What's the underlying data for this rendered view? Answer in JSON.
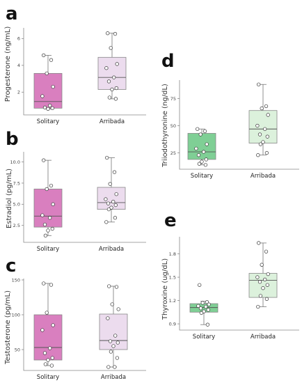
{
  "chart_data": [
    {
      "panel": "a",
      "type": "box",
      "ylabel": "Progesterone (ng/mL)",
      "categories": [
        "Solitary",
        "Arribada"
      ],
      "ylim": [
        0.3,
        6.8
      ],
      "yticks": [
        2,
        4,
        6
      ],
      "ytick_labels": [
        "2",
        "4",
        "6"
      ],
      "colors": [
        "#d97fbf",
        "#ecdcee"
      ],
      "boxes": [
        {
          "category": "Solitary",
          "whisker_low": 0.75,
          "q1": 0.8,
          "median": 1.3,
          "q3": 3.4,
          "whisker_high": 4.75,
          "points": [
            4.75,
            4.4,
            3.4,
            2.4,
            1.7,
            1.0,
            0.85,
            0.8,
            0.75
          ]
        },
        {
          "category": "Arribada",
          "whisker_low": 1.5,
          "q1": 2.2,
          "median": 3.1,
          "q3": 4.6,
          "whisker_high": 6.4,
          "points": [
            6.4,
            6.35,
            5.3,
            4.1,
            3.8,
            3.1,
            2.8,
            2.3,
            2.2,
            1.6,
            1.5
          ]
        }
      ]
    },
    {
      "panel": "b",
      "type": "box",
      "ylabel": "Estradiol (pg/mL)",
      "categories": [
        "Solitary",
        "Arribada"
      ],
      "ylim": [
        0.5,
        11.2
      ],
      "yticks": [
        2.5,
        5.0,
        7.5,
        10.0
      ],
      "ytick_labels": [
        "2.5",
        "5.0",
        "7.5",
        "10.0"
      ],
      "colors": [
        "#d97fbf",
        "#ecdcee"
      ],
      "boxes": [
        {
          "category": "Solitary",
          "whisker_low": 1.3,
          "q1": 2.3,
          "median": 3.6,
          "q3": 6.8,
          "whisker_high": 10.2,
          "points": [
            10.2,
            7.2,
            6.8,
            5.0,
            3.7,
            3.4,
            2.6,
            2.1,
            1.9,
            1.3
          ]
        },
        {
          "category": "Arribada",
          "whisker_low": 2.9,
          "q1": 4.4,
          "median": 5.2,
          "q3": 7.0,
          "whisker_high": 10.5,
          "points": [
            10.5,
            8.8,
            7.4,
            6.2,
            5.6,
            5.3,
            5.1,
            4.9,
            4.6,
            4.4,
            3.4,
            2.9
          ]
        }
      ]
    },
    {
      "panel": "c",
      "type": "box",
      "ylabel": "Testosterone (pg/mL)",
      "categories": [
        "Solitary",
        "Arribada"
      ],
      "ylim": [
        20,
        152
      ],
      "yticks": [
        50,
        100,
        150
      ],
      "ytick_labels": [
        "50",
        "100",
        "150"
      ],
      "colors": [
        "#d97fbf",
        "#ecdcee"
      ],
      "boxes": [
        {
          "category": "Solitary",
          "whisker_low": 27,
          "q1": 35,
          "median": 53,
          "q3": 100,
          "whisker_high": 145,
          "points": [
            145,
            143,
            103,
            85,
            78,
            52,
            45,
            38,
            35,
            29,
            27
          ]
        },
        {
          "category": "Arribada",
          "whisker_low": 25,
          "q1": 50,
          "median": 63,
          "q3": 101,
          "whisker_high": 141,
          "points": [
            141,
            140,
            115,
            108,
            95,
            70,
            62,
            60,
            55,
            47,
            38,
            25,
            25
          ]
        }
      ]
    },
    {
      "panel": "d",
      "type": "box",
      "ylabel": "Triiodothyronine (ng/dL)",
      "categories": [
        "Solitary",
        "Arribada"
      ],
      "ylim": [
        10,
        92
      ],
      "yticks": [
        25,
        50,
        75
      ],
      "ytick_labels": [
        "25",
        "50",
        "75"
      ],
      "colors": [
        "#7fcf95",
        "#dcf1dc"
      ],
      "boxes": [
        {
          "category": "Solitary",
          "whisker_low": 14,
          "q1": 19,
          "median": 26,
          "q3": 43,
          "whisker_high": 47,
          "points": [
            47,
            45,
            42,
            33,
            29,
            26,
            23,
            19,
            17,
            15,
            14
          ]
        },
        {
          "category": "Arribada",
          "whisker_low": 23,
          "q1": 34,
          "median": 47,
          "q3": 64,
          "whisker_high": 88,
          "points": [
            88,
            68,
            66,
            60,
            50,
            47,
            42,
            40,
            35,
            33,
            25,
            23
          ]
        }
      ]
    },
    {
      "panel": "e",
      "type": "box",
      "ylabel": "Thyroxine (ug/dL)",
      "categories": [
        "Solitary",
        "Arribada"
      ],
      "ylim": [
        0.82,
        2.02
      ],
      "yticks": [
        0.9,
        1.2,
        1.5,
        1.8
      ],
      "ytick_labels": [
        "0.9",
        "1.2",
        "1.5",
        "1.8"
      ],
      "colors": [
        "#7fcf95",
        "#dcf1dc"
      ],
      "boxes": [
        {
          "category": "Solitary",
          "whisker_low": 0.89,
          "q1": 1.05,
          "median": 1.11,
          "q3": 1.16,
          "whisker_high": 1.19,
          "points": [
            1.4,
            1.18,
            1.17,
            1.15,
            1.13,
            1.12,
            1.1,
            1.08,
            1.06,
            1.04,
            0.89
          ]
        },
        {
          "category": "Arribada",
          "whisker_low": 1.12,
          "q1": 1.24,
          "median": 1.46,
          "q3": 1.55,
          "whisker_high": 1.94,
          "points": [
            1.94,
            1.83,
            1.66,
            1.54,
            1.5,
            1.47,
            1.44,
            1.4,
            1.36,
            1.26,
            1.22,
            1.12
          ]
        }
      ]
    }
  ]
}
